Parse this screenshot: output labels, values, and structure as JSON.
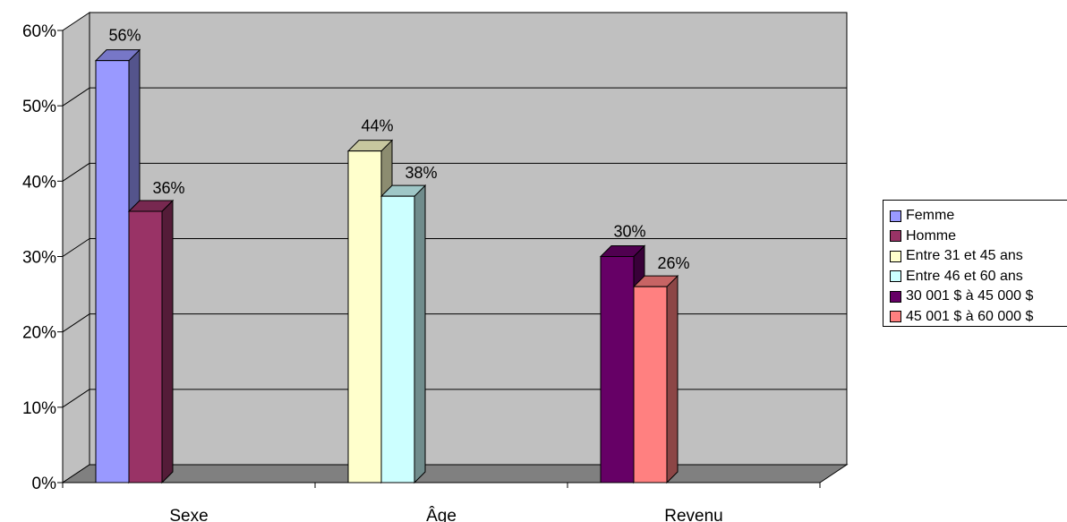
{
  "chart_data": {
    "type": "bar",
    "categories": [
      "Sexe",
      "Âge",
      "Revenu"
    ],
    "y_ticks": [
      "0%",
      "10%",
      "20%",
      "30%",
      "40%",
      "50%",
      "60%"
    ],
    "ylim": [
      0,
      60
    ],
    "grid": true,
    "legend_position": "right",
    "bars": [
      {
        "series": "Femme",
        "category": "Sexe",
        "value": 56,
        "label": "56%",
        "color": "#9999ff"
      },
      {
        "series": "Homme",
        "category": "Sexe",
        "value": 36,
        "label": "36%",
        "color": "#993366"
      },
      {
        "series": "Entre 31 et 45 ans",
        "category": "Âge",
        "value": 44,
        "label": "44%",
        "color": "#ffffcc"
      },
      {
        "series": "Entre 46 et 60 ans",
        "category": "Âge",
        "value": 38,
        "label": "38%",
        "color": "#ccffff"
      },
      {
        "series": "30 001 $ à 45 000 $",
        "category": "Revenu",
        "value": 30,
        "label": "30%",
        "color": "#660066"
      },
      {
        "series": "45 001 $ à 60 000 $",
        "category": "Revenu",
        "value": 26,
        "label": "26%",
        "color": "#ff8080"
      }
    ],
    "legend": [
      {
        "name": "Femme",
        "color": "#9999ff"
      },
      {
        "name": "Homme",
        "color": "#993366"
      },
      {
        "name": "Entre 31 et 45 ans",
        "color": "#ffffcc"
      },
      {
        "name": "Entre 46 et 60 ans",
        "color": "#ccffff"
      },
      {
        "name": "30 001 $ à 45 000 $",
        "color": "#660066"
      },
      {
        "name": "45 001 $ à 60 000 $",
        "color": "#ff8080"
      }
    ],
    "colors": {
      "wall": "#c0c0c0",
      "floor": "#808080"
    }
  }
}
